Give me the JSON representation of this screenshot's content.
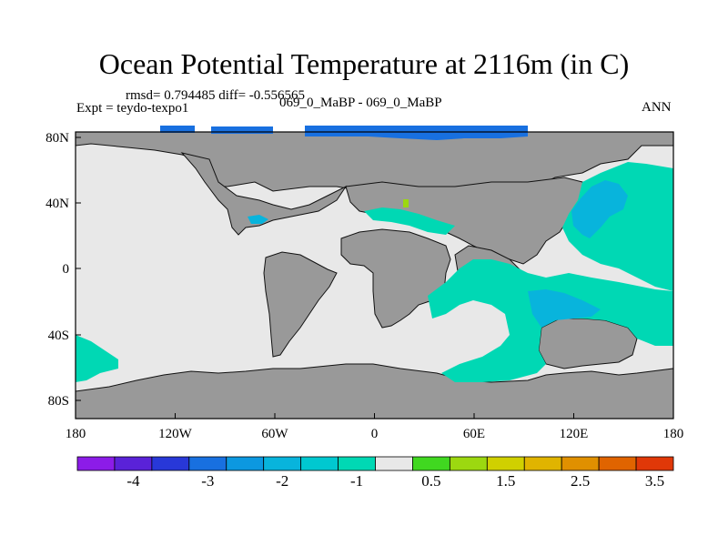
{
  "title": "Ocean Potential Temperature at 2116m (in C)",
  "stats_line": "rmsd= 0.794485 diff= -0.556565",
  "expt_label": "Expt = teydo-texpo1",
  "comparison_label": "069_0_MaBP - 069_0_MaBP",
  "season_label": "ANN",
  "x_ticks": [
    "180",
    "120W",
    "60W",
    "0",
    "60E",
    "120E",
    "180"
  ],
  "y_ticks": [
    "80N",
    "40N",
    "0",
    "40S",
    "80S"
  ],
  "colors": {
    "land": "#999999",
    "ocean_near_zero": "#e8e8e8",
    "anomaly_minus_1": "#00d8b4",
    "anomaly_minus_2": "#08b4dc",
    "anomaly_minus_3": "#1870e0"
  },
  "colorbar": {
    "colors": [
      "#8c1ce8",
      "#5a22d8",
      "#2838d8",
      "#1870e0",
      "#0c98e0",
      "#08b4dc",
      "#00c8d0",
      "#00d8b4",
      "#e8e8e8",
      "#40d820",
      "#9cd810",
      "#d0d000",
      "#e0b400",
      "#e09000",
      "#e06400",
      "#e03808"
    ],
    "labels": [
      "-4",
      "-3",
      "-2",
      "-1",
      "0.5",
      "1.5",
      "2.5",
      "3.5"
    ]
  }
}
